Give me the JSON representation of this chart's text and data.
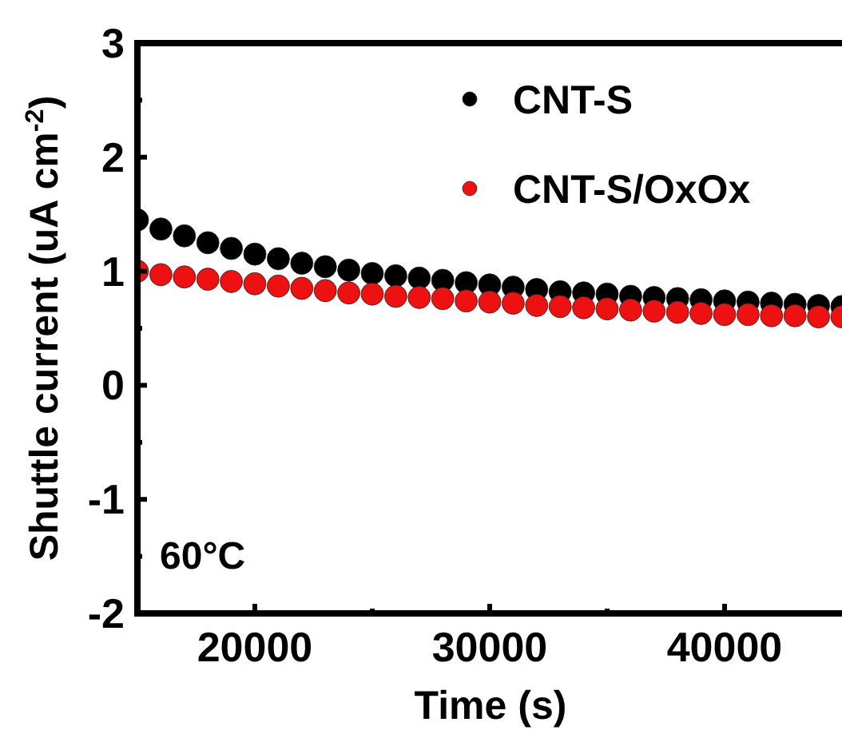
{
  "chart_data": {
    "type": "scatter",
    "xlabel": "Time (s)",
    "ylabel": "Shuttle current (uA cm$^{-2}$)",
    "xlim": [
      15000,
      45000
    ],
    "ylim": [
      -2,
      3
    ],
    "xticks": [
      20000,
      {
        "value": 25000,
        "label": null
      },
      30000,
      {
        "value": 35000,
        "label": null
      },
      40000
    ],
    "yticks": [
      -2,
      {
        "value": -1.5,
        "label": null
      },
      -1,
      {
        "value": -0.5,
        "label": null
      },
      0,
      {
        "value": 0.5,
        "label": null
      },
      1,
      {
        "value": 1.5,
        "label": null
      },
      2,
      {
        "value": 2.5,
        "label": null
      },
      3
    ],
    "x": [
      15000,
      16000,
      17000,
      18000,
      19000,
      20000,
      21000,
      22000,
      23000,
      24000,
      25000,
      26000,
      27000,
      28000,
      29000,
      30000,
      31000,
      32000,
      33000,
      34000,
      35000,
      36000,
      37000,
      38000,
      39000,
      40000,
      41000,
      42000,
      43000,
      44000,
      45000
    ],
    "series": [
      {
        "name": "CNT-S",
        "color": "#000000",
        "values": [
          1.45,
          1.37,
          1.31,
          1.25,
          1.2,
          1.15,
          1.11,
          1.07,
          1.04,
          1.01,
          0.98,
          0.96,
          0.94,
          0.92,
          0.9,
          0.88,
          0.86,
          0.84,
          0.82,
          0.81,
          0.8,
          0.78,
          0.77,
          0.76,
          0.75,
          0.74,
          0.73,
          0.72,
          0.71,
          0.7,
          0.69
        ]
      },
      {
        "name": "CNT-S/OxOx",
        "color": "#ee1111",
        "values": [
          1.0,
          0.97,
          0.95,
          0.93,
          0.91,
          0.89,
          0.87,
          0.85,
          0.83,
          0.81,
          0.8,
          0.78,
          0.77,
          0.76,
          0.74,
          0.73,
          0.72,
          0.7,
          0.69,
          0.68,
          0.67,
          0.66,
          0.65,
          0.64,
          0.63,
          0.62,
          0.62,
          0.61,
          0.61,
          0.6,
          0.6
        ]
      }
    ],
    "marker": "circle",
    "legend": "top right",
    "grid": false,
    "annotations": [
      "60°C"
    ]
  }
}
